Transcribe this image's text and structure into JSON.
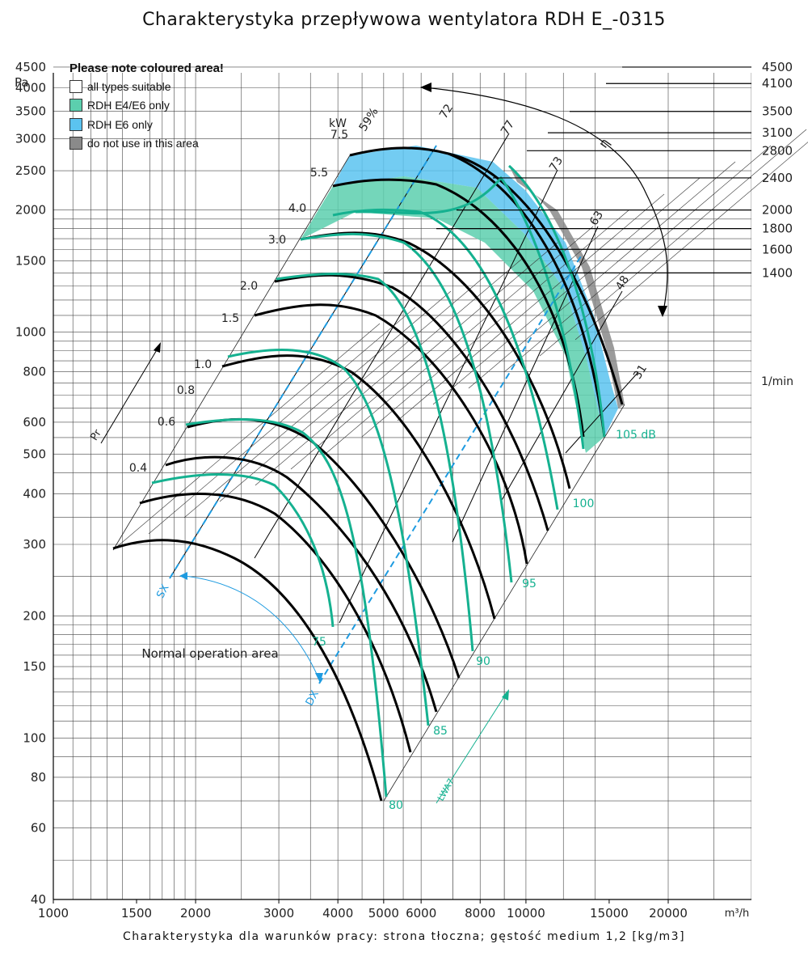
{
  "title": "Charakterystyka przepływowa wentylatora RDH E_-0315",
  "footer": "Charakterystyka dla warunków pracy: strona tłoczna; gęstość medium 1,2 [kg/m3]",
  "legend": {
    "title": "Please note coloured area!",
    "items": [
      {
        "label": "all types suitable",
        "color": "#ffffff"
      },
      {
        "label": "RDH E4/E6 only",
        "color": "#5ccfae"
      },
      {
        "label": "RDH E6 only",
        "color": "#5bc3f0"
      },
      {
        "label": "do not use in this area",
        "color": "#8a8a8a"
      }
    ]
  },
  "chart_data": {
    "type": "line",
    "x_scale": "log",
    "y_scale": "log",
    "xlim": [
      1000,
      30000
    ],
    "ylim": [
      40,
      5000
    ],
    "x_unit": "m³/h",
    "y_unit": "Pa",
    "x_ticks": [
      1000,
      1500,
      2000,
      3000,
      4000,
      5000,
      6000,
      8000,
      10000,
      15000,
      20000
    ],
    "y_ticks": [
      40,
      60,
      80,
      100,
      150,
      200,
      300,
      400,
      500,
      600,
      800,
      1000,
      1500,
      2000,
      2500,
      3000,
      3500,
      4000,
      4500
    ],
    "rpm_unit": "1/min",
    "rpm_lines": [
      1400,
      1600,
      1800,
      2000,
      2400,
      2800,
      3100,
      3500,
      4100,
      4500
    ],
    "power_unit": "kW",
    "power_labels": [
      "7.5",
      "5.5",
      "4.0",
      "3.0",
      "2.0",
      "1.5",
      "1.0",
      "0.8",
      "0.6",
      "0.4"
    ],
    "efficiency_labels": [
      "59%",
      "72",
      "77",
      "73",
      "63",
      "48",
      "31"
    ],
    "efficiency_symbol": "η",
    "noise_labels": [
      "80",
      "85",
      "90",
      "95",
      "100",
      "105 dB",
      "75"
    ],
    "noise_axis_label": "LWA7",
    "pressure_axis_label": "Pr",
    "operating_point_labels": [
      "SX",
      "DX"
    ],
    "annotation": "Normal operation area",
    "grid": true
  }
}
